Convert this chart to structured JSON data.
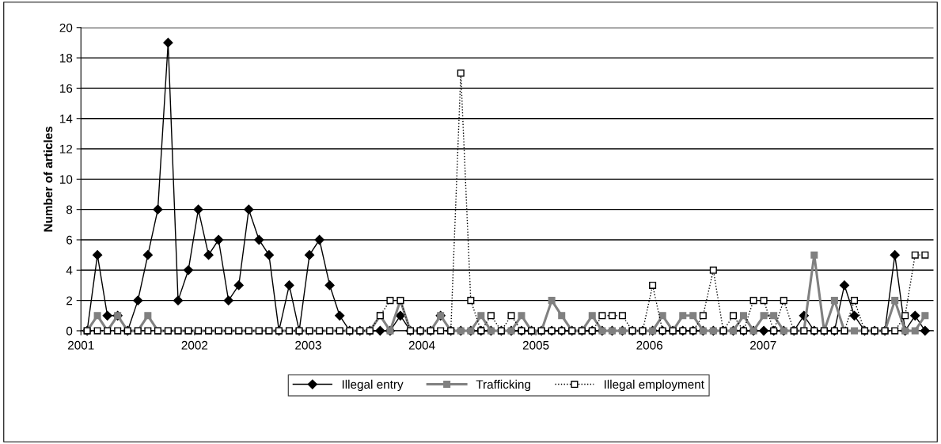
{
  "chart_data": {
    "type": "line",
    "ylabel": "Number of articles",
    "x": [
      "2001-01-21",
      "2001-02-23",
      "2001-03-27",
      "2001-04-29",
      "2001-05-31",
      "2001-07-03",
      "2001-08-04",
      "2001-09-05",
      "2001-10-08",
      "2001-11-09",
      "2001-12-12",
      "2002-01-13",
      "2002-02-15",
      "2002-03-19",
      "2002-04-20",
      "2002-05-23",
      "2002-06-24",
      "2002-07-27",
      "2002-08-28",
      "2002-09-29",
      "2002-11-01",
      "2002-12-03",
      "2003-01-05",
      "2003-02-06",
      "2003-03-11",
      "2003-04-12",
      "2003-05-14",
      "2003-06-16",
      "2003-07-18",
      "2003-08-20",
      "2003-09-21",
      "2003-10-24",
      "2003-11-25",
      "2003-12-27",
      "2004-01-29",
      "2004-03-01",
      "2004-04-03",
      "2004-05-05",
      "2004-06-06",
      "2004-07-09",
      "2004-08-10",
      "2004-09-12",
      "2004-10-14",
      "2004-11-16",
      "2004-12-18",
      "2005-01-19",
      "2005-02-21",
      "2005-03-25",
      "2005-04-27",
      "2005-05-29",
      "2005-07-01",
      "2005-08-02",
      "2005-09-03",
      "2005-10-06",
      "2005-11-07",
      "2005-12-10",
      "2006-01-11",
      "2006-02-12",
      "2006-03-17",
      "2006-04-18",
      "2006-05-21",
      "2006-06-22",
      "2006-07-25",
      "2006-08-26",
      "2006-09-27",
      "2006-10-30",
      "2006-12-01",
      "2007-01-03",
      "2007-02-04",
      "2007-03-08",
      "2007-04-10",
      "2007-05-12",
      "2007-06-14",
      "2007-07-16",
      "2007-08-18",
      "2007-09-19",
      "2007-10-21",
      "2007-11-23",
      "2007-12-25",
      "2008-01-27",
      "2008-02-28",
      "2008-04-01",
      "2008-05-03",
      "2008-06-04"
    ],
    "series": [
      {
        "name": "Illegal entry",
        "color": "#000000",
        "marker": "diamond",
        "line_style": "solid",
        "values": [
          0,
          5,
          1,
          1,
          0,
          2,
          5,
          8,
          19,
          2,
          4,
          8,
          5,
          6,
          2,
          3,
          8,
          6,
          5,
          0,
          3,
          0,
          5,
          6,
          3,
          1,
          0,
          0,
          0,
          0,
          0,
          1,
          0,
          0,
          0,
          1,
          0,
          0,
          0,
          0,
          0,
          0,
          0,
          0,
          0,
          0,
          0,
          0,
          0,
          0,
          0,
          0,
          0,
          0,
          0,
          0,
          0,
          0,
          0,
          0,
          0,
          0,
          0,
          0,
          0,
          0,
          0,
          0,
          0,
          0,
          0,
          1,
          0,
          0,
          0,
          3,
          1,
          0,
          0,
          0,
          5,
          0,
          1,
          0
        ]
      },
      {
        "name": "Trafficking",
        "color": "#808080",
        "marker": "square",
        "line_style": "solid",
        "values": [
          0,
          1,
          0,
          1,
          0,
          0,
          1,
          0,
          0,
          0,
          0,
          0,
          0,
          0,
          0,
          0,
          0,
          0,
          0,
          0,
          0,
          0,
          0,
          0,
          0,
          0,
          0,
          0,
          0,
          1,
          0,
          2,
          0,
          0,
          0,
          1,
          0,
          0,
          0,
          1,
          0,
          0,
          0,
          1,
          0,
          0,
          2,
          1,
          0,
          0,
          1,
          0,
          0,
          0,
          0,
          0,
          0,
          1,
          0,
          1,
          1,
          0,
          0,
          0,
          0,
          1,
          0,
          1,
          1,
          0,
          0,
          0,
          5,
          0,
          2,
          0,
          0,
          0,
          0,
          0,
          2,
          0,
          0,
          1
        ]
      },
      {
        "name": "Illegal employment",
        "color": "#000000",
        "marker": "square",
        "line_style": "dotted",
        "values": [
          0,
          0,
          0,
          0,
          0,
          0,
          0,
          0,
          0,
          0,
          0,
          0,
          0,
          0,
          0,
          0,
          0,
          0,
          0,
          0,
          0,
          0,
          0,
          0,
          0,
          0,
          0,
          0,
          0,
          1,
          2,
          2,
          0,
          0,
          0,
          0,
          0,
          17,
          2,
          0,
          1,
          0,
          1,
          0,
          0,
          0,
          0,
          0,
          0,
          0,
          0,
          1,
          1,
          1,
          0,
          0,
          3,
          0,
          0,
          0,
          0,
          1,
          4,
          0,
          1,
          0,
          2,
          2,
          0,
          2,
          0,
          0,
          0,
          0,
          0,
          0,
          2,
          0,
          0,
          0,
          0,
          1,
          5,
          5
        ]
      }
    ],
    "xlim": [
      "2001-01-01",
      "2008-07-01"
    ],
    "xticks": [
      {
        "value": "2001-01-01",
        "label": "2001"
      },
      {
        "value": "2002-01-01",
        "label": "2002"
      },
      {
        "value": "2003-01-01",
        "label": "2003"
      },
      {
        "value": "2004-01-01",
        "label": "2004"
      },
      {
        "value": "2005-01-01",
        "label": "2005"
      },
      {
        "value": "2006-01-01",
        "label": "2006"
      },
      {
        "value": "2007-01-01",
        "label": "2007"
      }
    ],
    "ylim": [
      0,
      20
    ],
    "yticks": [
      0,
      2,
      4,
      6,
      8,
      10,
      12,
      14,
      16,
      18,
      20
    ],
    "grid": "y",
    "legend": "bottom"
  }
}
